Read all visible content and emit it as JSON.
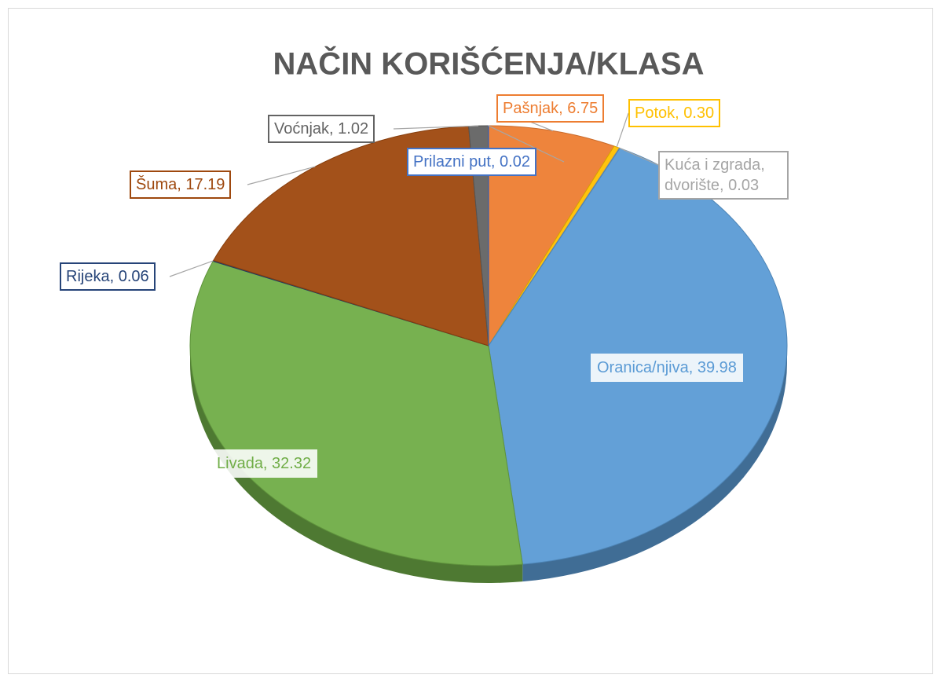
{
  "chart_data": {
    "type": "pie",
    "title": "NAČIN KORIŠĆENJA/KLASA",
    "values": [
      6.75,
      0.3,
      0.03,
      39.98,
      32.32,
      0.06,
      17.19,
      1.02,
      0.02
    ],
    "value_labels": [
      "Pašnjak, 6.75",
      "Potok, 0.30",
      "Kuća i zgrada, dvorište, 0.03",
      "Oranica/njiva, 39.98",
      "Livada, 32.32",
      "Rijeka, 0.06",
      "Šuma, 17.19",
      "Voćnjak, 1.02",
      "Prilazni put, 0.02"
    ],
    "colors": [
      "#ed7d31",
      "#ffc000",
      "#a5a5a5",
      "#5b9bd5",
      "#70ad47",
      "#264478",
      "#9e480e",
      "#636363",
      "#4472c4"
    ],
    "three_d": true
  }
}
